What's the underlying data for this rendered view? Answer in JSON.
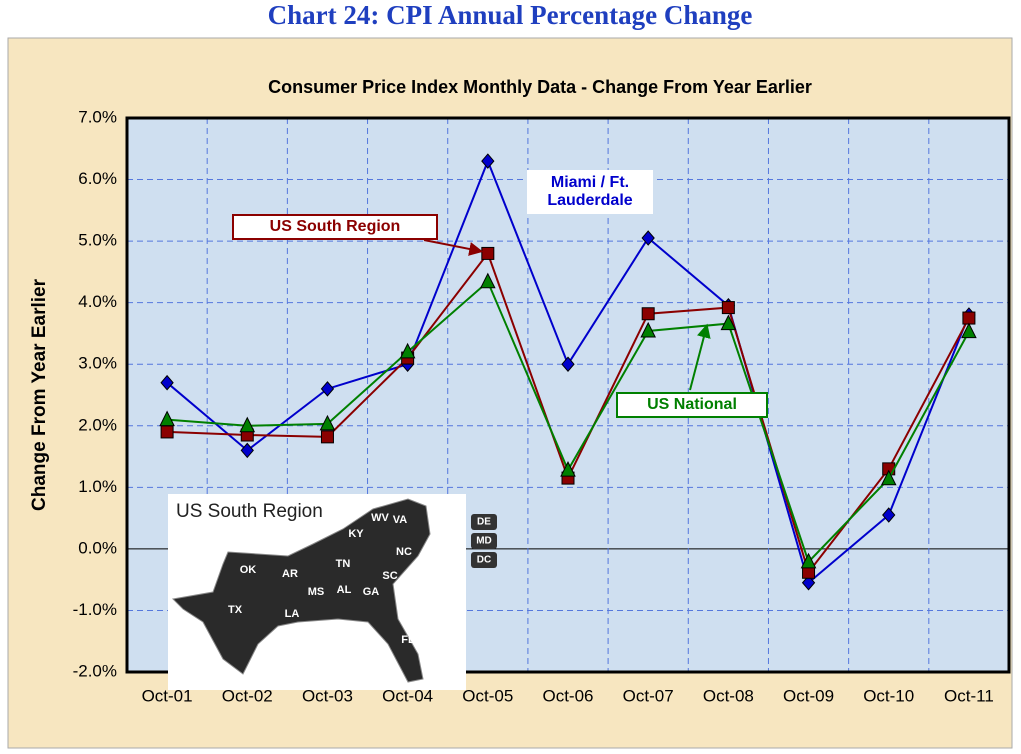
{
  "page_title": "Chart 24:  CPI Annual Percentage Change",
  "chart_data": {
    "type": "line",
    "title": "Consumer Price Index Monthly Data  - Change From Year Earlier",
    "y_label": "Change From Year Earlier",
    "categories": [
      "Oct-01",
      "Oct-02",
      "Oct-03",
      "Oct-04",
      "Oct-05",
      "Oct-06",
      "Oct-07",
      "Oct-08",
      "Oct-09",
      "Oct-10",
      "Oct-11"
    ],
    "series": [
      {
        "name": "Miami / Ft. Lauderdale",
        "color": "#0000cc",
        "marker": "diamond",
        "values": [
          2.7,
          1.6,
          2.6,
          3.0,
          6.3,
          3.0,
          5.05,
          3.95,
          -0.55,
          0.55,
          3.8
        ]
      },
      {
        "name": "US South Region",
        "color": "#8b0000",
        "marker": "square",
        "values": [
          1.9,
          1.85,
          1.82,
          3.1,
          4.8,
          1.15,
          3.82,
          3.92,
          -0.38,
          1.3,
          3.75
        ]
      },
      {
        "name": "US National",
        "color": "#008000",
        "marker": "triangle",
        "values": [
          2.1,
          2.0,
          2.03,
          3.2,
          4.34,
          1.28,
          3.54,
          3.66,
          -0.21,
          1.14,
          3.53
        ]
      }
    ],
    "ylim": [
      -2,
      7
    ],
    "yticks": [
      {
        "value": -2,
        "label": "-2.0%"
      },
      {
        "value": -1,
        "label": "-1.0%"
      },
      {
        "value": 0,
        "label": "0.0%"
      },
      {
        "value": 1,
        "label": "1.0%"
      },
      {
        "value": 2,
        "label": "2.0%"
      },
      {
        "value": 3,
        "label": "3.0%"
      },
      {
        "value": 4,
        "label": "4.0%"
      },
      {
        "value": 5,
        "label": "5.0%"
      },
      {
        "value": 6,
        "label": "6.0%"
      },
      {
        "value": 7,
        "label": "7.0%"
      }
    ],
    "grid": true,
    "map_title": "US South Region",
    "map_labels": [
      "TX",
      "OK",
      "AR",
      "LA",
      "MS",
      "AL",
      "TN",
      "KY",
      "GA",
      "FL",
      "SC",
      "NC",
      "VA",
      "WV",
      "DE",
      "MD",
      "DC"
    ]
  }
}
